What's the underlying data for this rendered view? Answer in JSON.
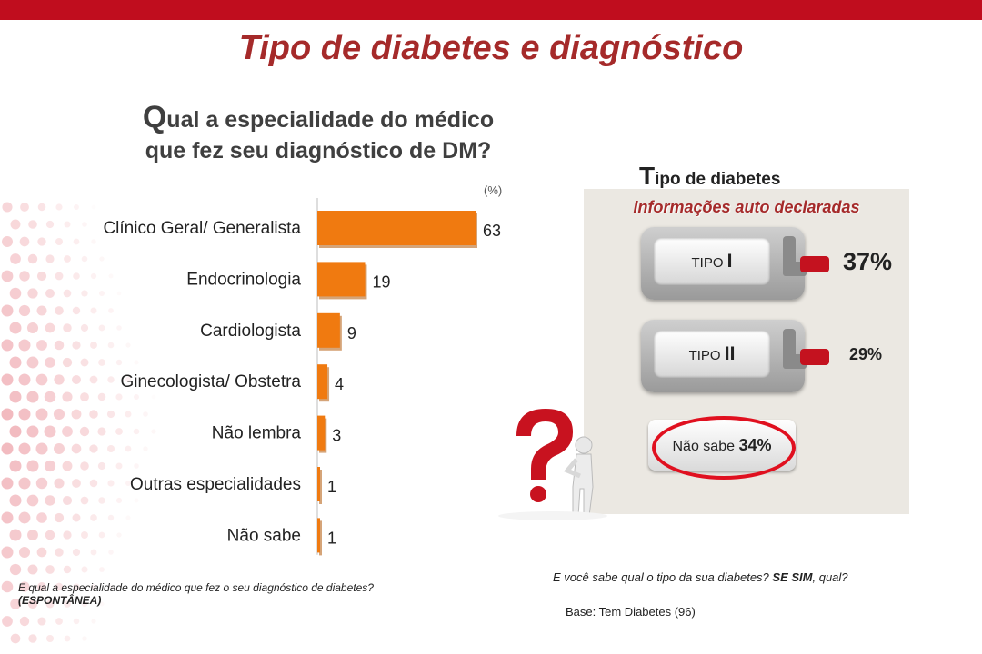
{
  "page": {
    "title": "Tipo de diabetes e diagnóstico",
    "accent_color": "#c00d1e",
    "title_color": "#a52a2a"
  },
  "left": {
    "question_first_letter": "Q",
    "question_line1_rest": "ual a especialidade do médico",
    "question_line2": "que fez seu diagnóstico de DM?",
    "units": "(%)",
    "footnote_text": "E qual a especialidade do médico que fez o seu  diagnóstico de diabetes?",
    "footnote_bold": "(ESPONTÂNEA)"
  },
  "chart_data": {
    "type": "bar",
    "orientation": "horizontal",
    "categories": [
      "Clínico Geral/ Generalista",
      "Endocrinologia",
      "Cardiologista",
      "Ginecologista/ Obstetra",
      "Não lembra",
      "Outras especialidades",
      "Não sabe"
    ],
    "values": [
      63,
      19,
      9,
      4,
      3,
      1,
      1
    ],
    "unit": "%",
    "bar_color": "#f07a10",
    "grid": false
  },
  "right": {
    "heading_first_letter": "T",
    "heading_rest": "ipo de diabetes",
    "subtitle": "Informações auto declaradas",
    "tipo1": {
      "label": "TIPO",
      "roman": "I",
      "pct": "37%"
    },
    "tipo2": {
      "label": "TIPO",
      "roman": "II",
      "pct": "29%"
    },
    "nao_sabe": {
      "label": "Não sabe",
      "pct": "34%"
    },
    "highlight_color": "#e0101f",
    "question_text": "E você sabe qual o tipo da sua diabetes?",
    "question_bold": "SE SIM",
    "question_end": ", qual?",
    "base": "Base: Tem Diabetes (96)"
  }
}
